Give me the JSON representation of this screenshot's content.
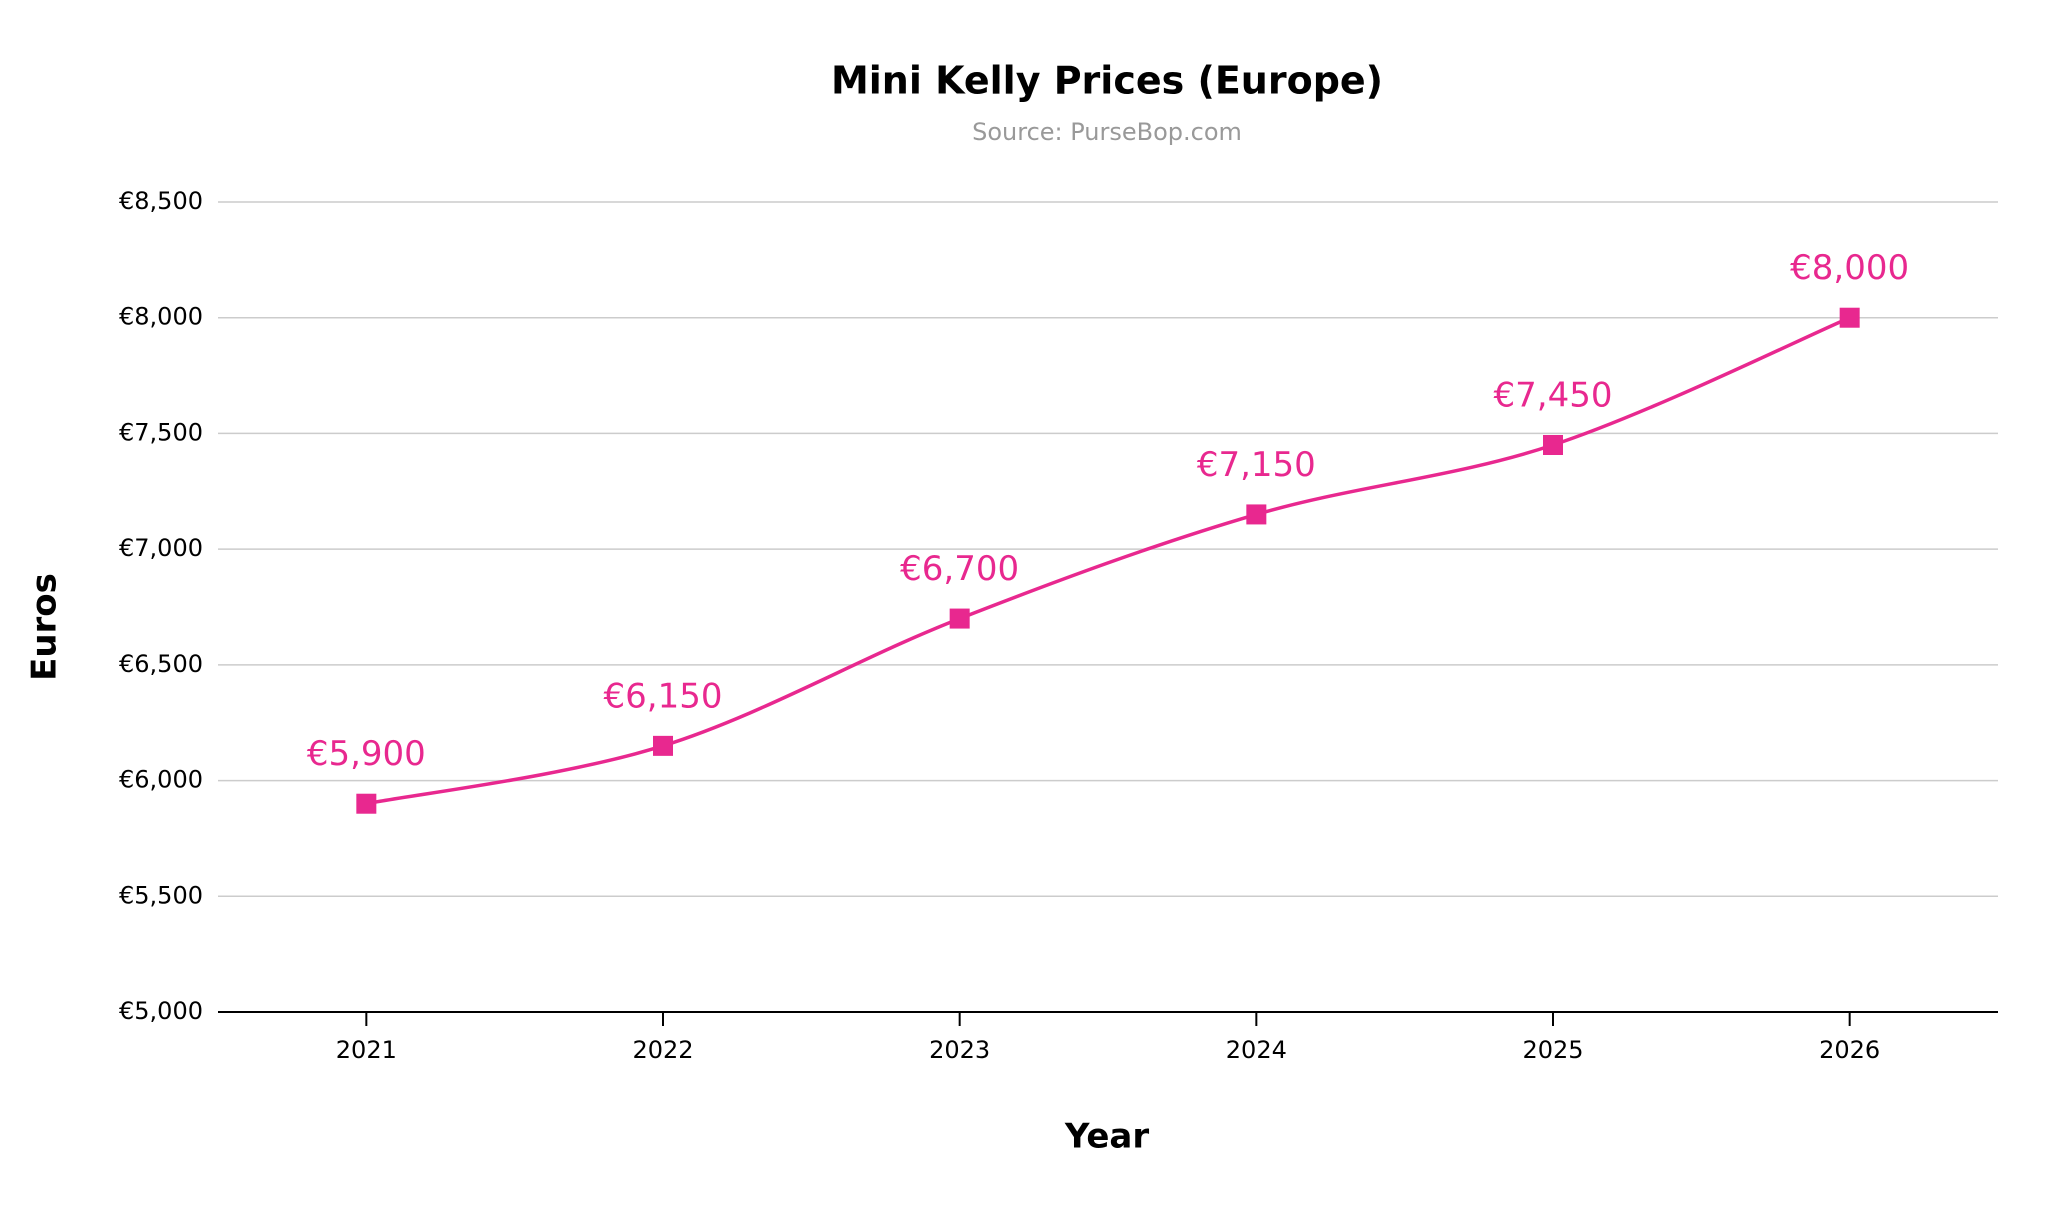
{
  "chart_data": {
    "type": "line",
    "title": "Mini Kelly Prices (Europe)",
    "subtitle": "Source: PurseBop.com",
    "x_label": "Year",
    "y_label": "Euros",
    "categories": [
      "2021",
      "2022",
      "2023",
      "2024",
      "2025",
      "2026"
    ],
    "series": [
      {
        "name": "Mini Kelly",
        "color": "#e8288f",
        "values": [
          5900,
          6150,
          6700,
          7150,
          7450,
          8000
        ],
        "value_labels": [
          "€5,900",
          "€6,150",
          "€6,700",
          "€7,150",
          "€7,450",
          "€8,000"
        ]
      }
    ],
    "ylim": [
      5000,
      8500
    ],
    "yticks": [
      {
        "value": 5000,
        "label": "€5,000"
      },
      {
        "value": 5500,
        "label": "€5,500"
      },
      {
        "value": 6000,
        "label": "€6,000"
      },
      {
        "value": 6500,
        "label": "€6,500"
      },
      {
        "value": 7000,
        "label": "€7,000"
      },
      {
        "value": 7500,
        "label": "€7,500"
      },
      {
        "value": 8000,
        "label": "€8,000"
      },
      {
        "value": 8500,
        "label": "€8,500"
      }
    ],
    "grid": true
  }
}
